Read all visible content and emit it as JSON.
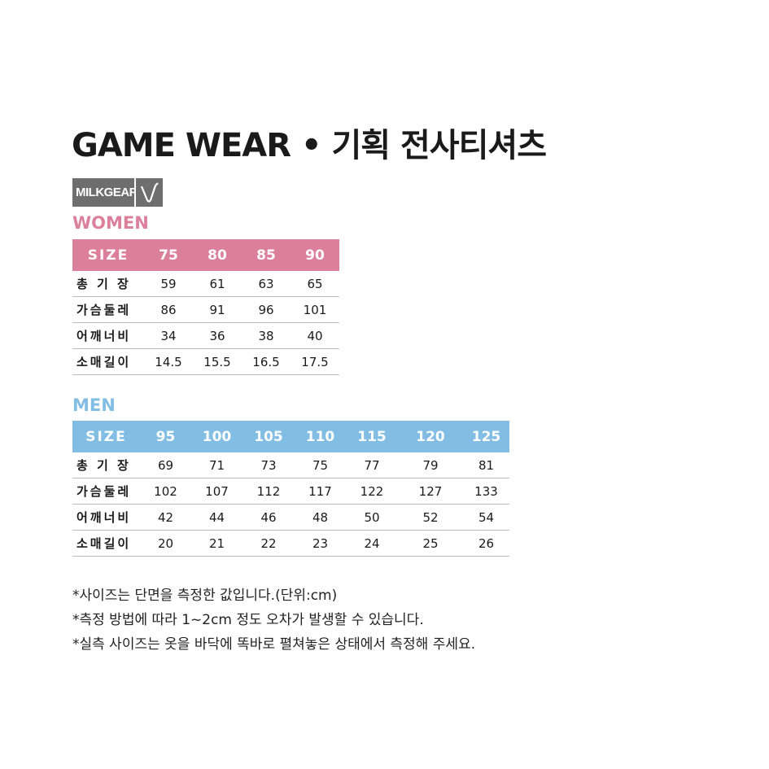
{
  "title": "GAME WEAR • 기획 전사티셔츠",
  "logo": {
    "text": "MILKGEAR"
  },
  "colors": {
    "women": "#dc7f9c",
    "men": "#82bde4",
    "logo": "#6e6e6e"
  },
  "women": {
    "heading": "WOMEN",
    "header": [
      "SIZE",
      "75",
      "80",
      "85",
      "90"
    ],
    "rows": [
      [
        "총 기 장",
        "59",
        "61",
        "63",
        "65"
      ],
      [
        "가슴둘레",
        "86",
        "91",
        "96",
        "101"
      ],
      [
        "어깨너비",
        "34",
        "36",
        "38",
        "40"
      ],
      [
        "소매길이",
        "14.5",
        "15.5",
        "16.5",
        "17.5"
      ]
    ]
  },
  "men": {
    "heading": "MEN",
    "header": [
      "SIZE",
      "95",
      "100",
      "105",
      "110",
      "115",
      "120",
      "125"
    ],
    "rows": [
      [
        "총 기 장",
        "69",
        "71",
        "73",
        "75",
        "77",
        "79",
        "81"
      ],
      [
        "가슴둘레",
        "102",
        "107",
        "112",
        "117",
        "122",
        "127",
        "133"
      ],
      [
        "어깨너비",
        "42",
        "44",
        "46",
        "48",
        "50",
        "52",
        "54"
      ],
      [
        "소매길이",
        "20",
        "21",
        "22",
        "23",
        "24",
        "25",
        "26"
      ]
    ]
  },
  "notes": [
    "*사이즈는 단면을 측정한 값입니다.(단위:cm)",
    "*측정 방법에 따라 1~2cm 정도 오차가 발생할 수 있습니다.",
    "*실측 사이즈는 옷을 바닥에 똑바로 펼쳐놓은 상태에서 측정해 주세요."
  ]
}
